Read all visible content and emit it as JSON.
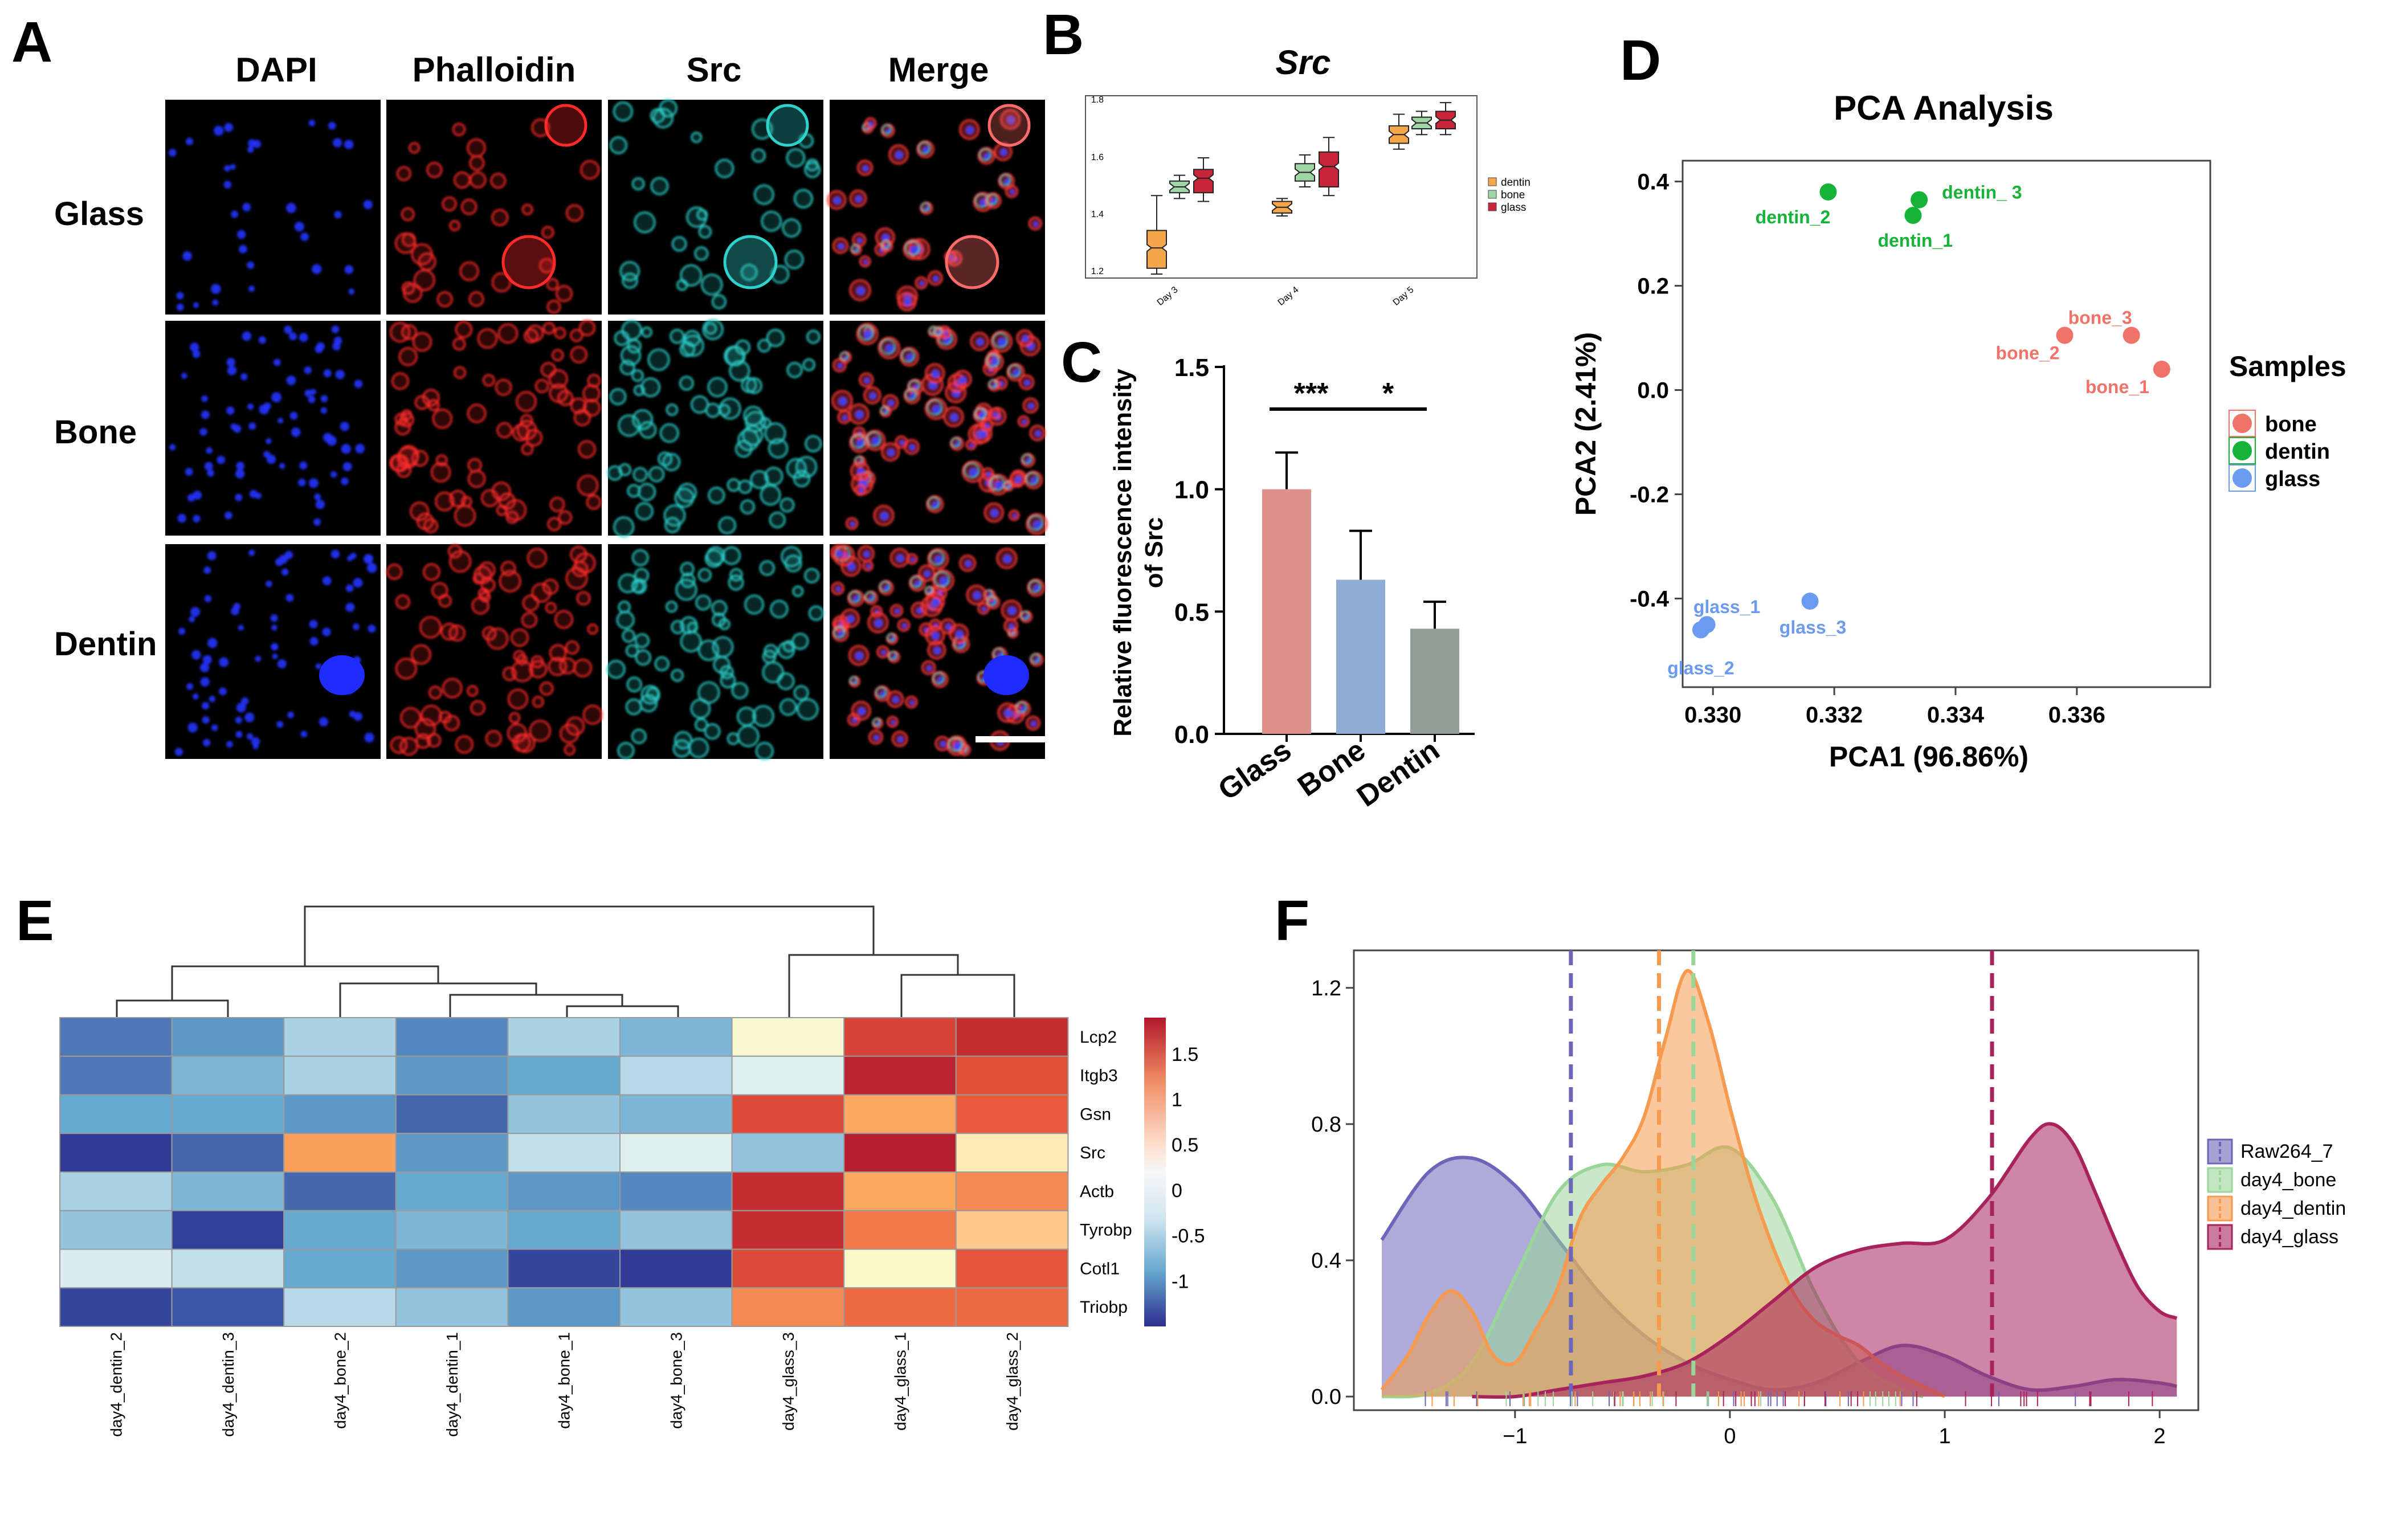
{
  "colors": {
    "dentin": "#16b339",
    "bone": "#f0736a",
    "glass": "#6b9bf0",
    "barGlass": "#dc918c",
    "barBone": "#8fabd6",
    "barDentin": "#949e98",
    "raw": "#6b66b8",
    "d4bone": "#9ad69a",
    "d4dentin": "#f59a4e",
    "d4glass": "#a8235c",
    "boxDentin": "#f5a64a",
    "boxBone": "#9ed6a5",
    "boxGlass": "#c8243a"
  },
  "panels": {
    "A": {
      "label": "A",
      "columns": [
        "DAPI",
        "Phalloidin",
        "Src",
        "Merge"
      ],
      "rows": [
        "Glass",
        "Bone",
        "Dentin"
      ]
    },
    "B": {
      "label": "B",
      "title": "Src",
      "yticks": [
        "1.8",
        "1.6",
        "1.4",
        "1.2"
      ],
      "days": [
        "Day 3",
        "Day 4",
        "Day 5"
      ],
      "legend": [
        "dentin",
        "bone",
        "glass"
      ]
    },
    "C": {
      "label": "C"
    },
    "D": {
      "label": "D",
      "sample_labels": {
        "dentin_3": "dentin_ 3",
        "dentin_2": "dentin_2",
        "dentin_1": "dentin_1",
        "bone_3": "bone_3",
        "bone_2": "bone_2",
        "bone_1": "bone_1",
        "glass_1": "glass_1",
        "glass_3": "glass_3",
        "glass_2": "glass_2"
      }
    },
    "E": {
      "label": "E"
    },
    "F": {
      "label": "F"
    }
  },
  "chart_data": [
    {
      "id": "B",
      "type": "box",
      "title": "Src",
      "categories": [
        "Day 3",
        "Day 4",
        "Day 5"
      ],
      "ylim": [
        1.18,
        1.82
      ],
      "series": [
        {
          "name": "dentin",
          "boxes": [
            {
              "q1": 1.22,
              "med": 1.29,
              "q3": 1.35,
              "lo": 1.2,
              "hi": 1.47
            },
            {
              "q1": 1.41,
              "med": 1.43,
              "q3": 1.45,
              "lo": 1.4,
              "hi": 1.46
            },
            {
              "q1": 1.65,
              "med": 1.68,
              "q3": 1.71,
              "lo": 1.63,
              "hi": 1.75
            }
          ]
        },
        {
          "name": "bone",
          "boxes": [
            {
              "q1": 1.48,
              "med": 1.5,
              "q3": 1.52,
              "lo": 1.46,
              "hi": 1.54
            },
            {
              "q1": 1.52,
              "med": 1.55,
              "q3": 1.58,
              "lo": 1.5,
              "hi": 1.61
            },
            {
              "q1": 1.7,
              "med": 1.72,
              "q3": 1.74,
              "lo": 1.68,
              "hi": 1.76
            }
          ]
        },
        {
          "name": "glass",
          "boxes": [
            {
              "q1": 1.48,
              "med": 1.53,
              "q3": 1.56,
              "lo": 1.45,
              "hi": 1.6
            },
            {
              "q1": 1.5,
              "med": 1.57,
              "q3": 1.62,
              "lo": 1.47,
              "hi": 1.67
            },
            {
              "q1": 1.7,
              "med": 1.73,
              "q3": 1.76,
              "lo": 1.68,
              "hi": 1.79
            }
          ]
        }
      ]
    },
    {
      "id": "C",
      "type": "bar",
      "categories": [
        "Glass",
        "Bone",
        "Dentin"
      ],
      "values": [
        1.0,
        0.63,
        0.43
      ],
      "errors": [
        0.15,
        0.2,
        0.11
      ],
      "ylabel": "Relative fluorescence intensity of Src",
      "ylabel_lines": [
        "Relative fluorescence intensity",
        "of Src"
      ],
      "ylim": [
        0,
        1.5
      ],
      "yticks": [
        "0.0",
        "0.5",
        "1.0",
        "1.5"
      ],
      "significance": [
        {
          "pair": [
            "Glass",
            "Bone"
          ],
          "label": "***"
        },
        {
          "pair": [
            "Bone",
            "Dentin"
          ],
          "label": "*"
        }
      ]
    },
    {
      "id": "D",
      "type": "scatter",
      "title": "PCA Analysis",
      "xlabel": "PCA1 (96.86%)",
      "ylabel": "PCA2 (2.41%)",
      "xlim": [
        0.3295,
        0.3382
      ],
      "ylim": [
        -0.57,
        0.44
      ],
      "xticks": [
        "0.330",
        "0.332",
        "0.334",
        "0.336"
      ],
      "yticks": [
        "0.4",
        "0.2",
        "0.0",
        "-0.2",
        "-0.4"
      ],
      "legend_title": "Samples",
      "legend": [
        "bone",
        "dentin",
        "glass"
      ],
      "points": [
        {
          "group": "dentin",
          "id": "dentin_2",
          "x": 0.3319,
          "y": 0.38
        },
        {
          "group": "dentin",
          "id": "dentin_3",
          "x": 0.3334,
          "y": 0.365
        },
        {
          "group": "dentin",
          "id": "dentin_1",
          "x": 0.3333,
          "y": 0.335
        },
        {
          "group": "bone",
          "id": "bone_2",
          "x": 0.3358,
          "y": 0.105
        },
        {
          "group": "bone",
          "id": "bone_3",
          "x": 0.3369,
          "y": 0.105
        },
        {
          "group": "bone",
          "id": "bone_1",
          "x": 0.3374,
          "y": 0.04
        },
        {
          "group": "glass",
          "id": "glass_1",
          "x": 0.3299,
          "y": -0.45
        },
        {
          "group": "glass",
          "id": "glass_2",
          "x": 0.3298,
          "y": -0.46
        },
        {
          "group": "glass",
          "id": "glass_3",
          "x": 0.3316,
          "y": -0.405
        }
      ]
    },
    {
      "id": "E",
      "type": "heatmap",
      "columns": [
        "day4_dentin_2",
        "day4_dentin_3",
        "day4_bone_2",
        "day4_dentin_1",
        "day4_bone_1",
        "day4_bone_3",
        "day4_glass_3",
        "day4_glass_1",
        "day4_glass_2"
      ],
      "rows": [
        "Lcp2",
        "Itgb3",
        "Gsn",
        "Src",
        "Actb",
        "Tyrobp",
        "Cotl1",
        "Triobp"
      ],
      "values": [
        [
          -0.8,
          -0.6,
          -0.2,
          -0.7,
          -0.2,
          -0.4,
          0.25,
          1.5,
          1.7
        ],
        [
          -0.8,
          -0.4,
          -0.2,
          -0.6,
          -0.5,
          -0.15,
          0.05,
          1.8,
          1.4
        ],
        [
          -0.5,
          -0.5,
          -0.6,
          -0.9,
          -0.3,
          -0.4,
          1.45,
          0.8,
          1.3
        ],
        [
          -1.35,
          -0.9,
          0.85,
          -0.6,
          -0.1,
          0.05,
          -0.3,
          1.85,
          0.4
        ],
        [
          -0.2,
          -0.4,
          -0.9,
          -0.5,
          -0.6,
          -0.7,
          1.7,
          0.8,
          1.0
        ],
        [
          -0.3,
          -1.3,
          -0.5,
          -0.4,
          -0.5,
          -0.3,
          1.7,
          1.1,
          0.6
        ],
        [
          0.0,
          -0.1,
          -0.5,
          -0.6,
          -1.2,
          -1.35,
          1.45,
          0.3,
          1.35
        ],
        [
          -1.2,
          -1.0,
          -0.15,
          -0.3,
          -0.6,
          -0.3,
          1.0,
          1.2,
          1.2
        ]
      ],
      "scale_ticks": [
        "1.5",
        "1",
        "0.5",
        "0",
        "-0.5",
        "-1"
      ],
      "scale_range": [
        -1.5,
        1.9
      ]
    },
    {
      "id": "F",
      "type": "area",
      "xlim": [
        -1.75,
        2.18
      ],
      "ylim": [
        -0.04,
        1.31
      ],
      "xticks": [
        "−1",
        "0",
        "1",
        "2"
      ],
      "yticks": [
        "0.0",
        "0.4",
        "0.8",
        "1.2"
      ],
      "means": {
        "Raw264_7": -0.74,
        "day4_bone": -0.17,
        "day4_dentin": -0.33,
        "day4_glass": 1.22
      },
      "series": [
        {
          "name": "Raw264_7",
          "x": [
            -1.62,
            -1.4,
            -1.2,
            -1.0,
            -0.8,
            -0.6,
            -0.4,
            -0.2,
            0.0,
            0.2,
            0.4,
            0.6,
            0.8,
            1.0,
            1.2,
            1.4,
            1.6,
            1.8,
            2.0,
            2.08
          ],
          "y": [
            0.46,
            0.66,
            0.7,
            0.62,
            0.46,
            0.3,
            0.18,
            0.1,
            0.05,
            0.02,
            0.04,
            0.1,
            0.15,
            0.12,
            0.06,
            0.02,
            0.03,
            0.05,
            0.04,
            0.03
          ]
        },
        {
          "name": "day4_bone",
          "x": [
            -1.62,
            -1.4,
            -1.2,
            -1.0,
            -0.8,
            -0.6,
            -0.4,
            -0.2,
            0.0,
            0.2,
            0.4,
            0.6,
            0.8,
            0.9
          ],
          "y": [
            0.0,
            0.01,
            0.1,
            0.35,
            0.6,
            0.68,
            0.66,
            0.68,
            0.73,
            0.58,
            0.3,
            0.1,
            0.02,
            0.0
          ]
        },
        {
          "name": "day4_dentin",
          "x": [
            -1.62,
            -1.5,
            -1.4,
            -1.3,
            -1.2,
            -1.1,
            -1.0,
            -0.9,
            -0.8,
            -0.7,
            -0.6,
            -0.5,
            -0.4,
            -0.3,
            -0.2,
            -0.1,
            0.0,
            0.1,
            0.2,
            0.3,
            0.4,
            0.5,
            0.6,
            0.7,
            0.8,
            0.9,
            1.0
          ],
          "y": [
            0.02,
            0.12,
            0.24,
            0.31,
            0.25,
            0.12,
            0.1,
            0.2,
            0.32,
            0.52,
            0.62,
            0.7,
            0.82,
            1.05,
            1.25,
            1.1,
            0.85,
            0.62,
            0.44,
            0.3,
            0.22,
            0.18,
            0.15,
            0.1,
            0.06,
            0.03,
            0.0
          ]
        },
        {
          "name": "day4_glass",
          "x": [
            -1.2,
            -1.0,
            -0.8,
            -0.6,
            -0.4,
            -0.2,
            0.0,
            0.2,
            0.4,
            0.6,
            0.8,
            1.0,
            1.2,
            1.4,
            1.5,
            1.6,
            1.7,
            1.8,
            1.9,
            2.0,
            2.08
          ],
          "y": [
            0.0,
            0.0,
            0.02,
            0.04,
            0.06,
            0.1,
            0.18,
            0.28,
            0.38,
            0.43,
            0.45,
            0.46,
            0.58,
            0.76,
            0.8,
            0.74,
            0.6,
            0.45,
            0.32,
            0.25,
            0.23
          ]
        }
      ]
    }
  ]
}
